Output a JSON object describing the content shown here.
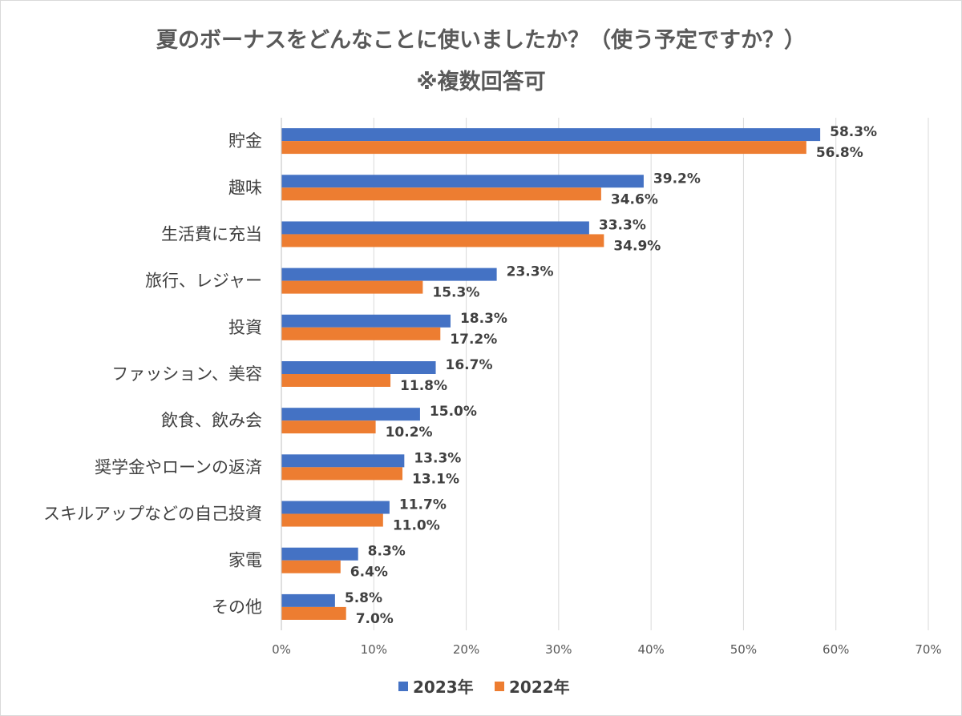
{
  "chart_data": {
    "type": "bar",
    "orientation": "horizontal",
    "title": "夏のボーナスをどんなことに使いましたか？（使う予定ですか？）",
    "subtitle": "※複数回答可",
    "categories": [
      "貯金",
      "趣味",
      "生活費に充当",
      "旅行、レジャー",
      "投資",
      "ファッション、美容",
      "飲食、飲み会",
      "奨学金やローンの返済",
      "スキルアップなどの自己投資",
      "家電",
      "その他"
    ],
    "series": [
      {
        "name": "2023年",
        "color": "#4472c4",
        "values": [
          58.3,
          39.2,
          33.3,
          23.3,
          18.3,
          16.7,
          15.0,
          13.3,
          11.7,
          8.3,
          5.8
        ],
        "labels": [
          "58.3%",
          "39.2%",
          "33.3%",
          "23.3%",
          "18.3%",
          "16.7%",
          "15.0%",
          "13.3%",
          "11.7%",
          "8.3%",
          "5.8%"
        ]
      },
      {
        "name": "2022年",
        "color": "#ed7d31",
        "values": [
          56.8,
          34.6,
          34.9,
          15.3,
          17.2,
          11.8,
          10.2,
          13.1,
          11.0,
          6.4,
          7.0
        ],
        "labels": [
          "56.8%",
          "34.6%",
          "34.9%",
          "15.3%",
          "17.2%",
          "11.8%",
          "10.2%",
          "13.1%",
          "11.0%",
          "6.4%",
          "7.0%"
        ]
      }
    ],
    "xlim": [
      0,
      70
    ],
    "xticks": [
      0,
      10,
      20,
      30,
      40,
      50,
      60,
      70
    ],
    "xtick_labels": [
      "0%",
      "10%",
      "20%",
      "30%",
      "40%",
      "50%",
      "60%",
      "70%"
    ],
    "grid": true,
    "legend_position": "bottom"
  }
}
